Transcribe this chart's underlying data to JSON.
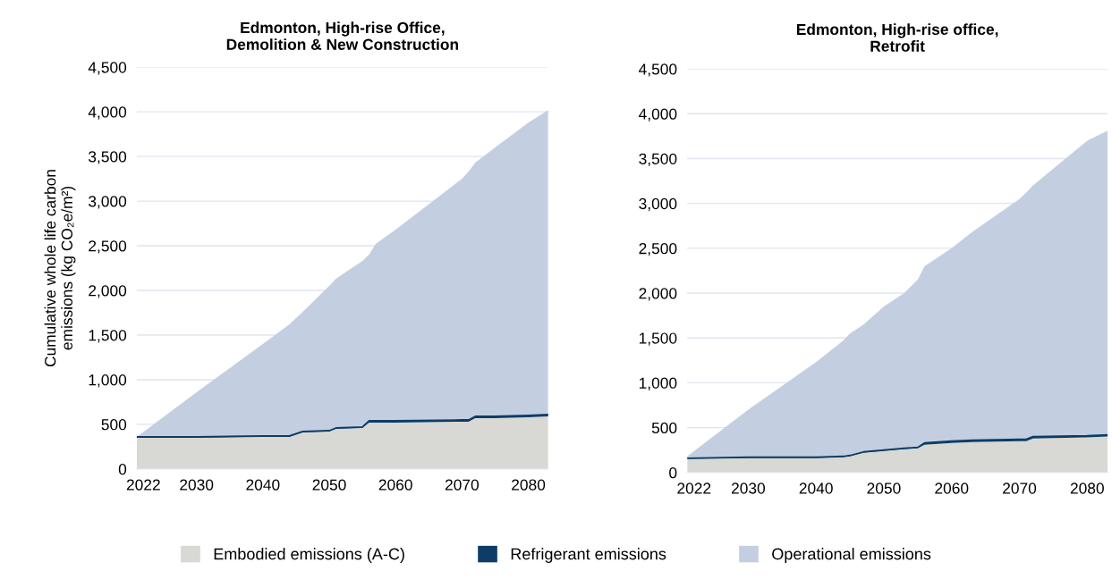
{
  "chart_data": [
    {
      "type": "area",
      "stacked": true,
      "title": "Edmonton, High-rise Office,\nDemolition & New Construction",
      "ylabel": "Cumulative whole life carbon\nemissions (kg CO₂e/m²)",
      "x": [
        2021,
        2030,
        2040,
        2044,
        2046,
        2050,
        2051,
        2055,
        2056,
        2057,
        2060,
        2070,
        2071,
        2072,
        2075,
        2080,
        2083
      ],
      "series": [
        {
          "name": "Embodied emissions (A-C)",
          "color": "#d8d8d5",
          "values": [
            350,
            350,
            360,
            360,
            410,
            420,
            450,
            460,
            520,
            520,
            520,
            530,
            530,
            570,
            570,
            580,
            590
          ]
        },
        {
          "name": "Refrigerant emissions",
          "color": "#0d3d66",
          "values": [
            10,
            10,
            10,
            10,
            10,
            10,
            10,
            10,
            20,
            20,
            20,
            20,
            20,
            20,
            20,
            20,
            20
          ]
        },
        {
          "name": "Operational emissions",
          "color": "#c3cfe1",
          "values": [
            0,
            500,
            1030,
            1250,
            1340,
            1620,
            1670,
            1860,
            1860,
            1980,
            2140,
            2700,
            2780,
            2840,
            3010,
            3280,
            3410
          ]
        }
      ],
      "xlim": [
        2021,
        2083
      ],
      "xticks": [
        2022,
        2030,
        2040,
        2050,
        2060,
        2070,
        2080
      ],
      "ylim": [
        0,
        4500
      ],
      "yticks": [
        0,
        500,
        {
          "value": 1000,
          "label": "1,000"
        },
        {
          "value": 1500,
          "label": "1,500"
        },
        {
          "value": 2000,
          "label": "2,000"
        },
        {
          "value": 2500,
          "label": "2,500"
        },
        {
          "value": 3000,
          "label": "3,000"
        },
        {
          "value": 3500,
          "label": "3,500"
        },
        {
          "value": 4000,
          "label": "4,000"
        },
        {
          "value": 4500,
          "label": "4,500"
        }
      ],
      "grid": "y",
      "legend": "bottom"
    },
    {
      "type": "area",
      "stacked": true,
      "title": "Edmonton, High-rise office,\nRetrofit",
      "x": [
        2021,
        2030,
        2040,
        2044,
        2045,
        2047,
        2050,
        2053,
        2055,
        2056,
        2060,
        2063,
        2070,
        2071,
        2072,
        2080,
        2083
      ],
      "series": [
        {
          "color": "#d8d8d5",
          "values": [
            150,
            160,
            160,
            170,
            180,
            220,
            240,
            260,
            270,
            310,
            330,
            340,
            350,
            350,
            380,
            390,
            400
          ]
        },
        {
          "color": "#0d3d66",
          "values": [
            10,
            10,
            10,
            10,
            10,
            10,
            10,
            10,
            10,
            20,
            20,
            20,
            20,
            20,
            20,
            20,
            20
          ]
        },
        {
          "color": "#c3cfe1",
          "values": [
            20,
            530,
            1060,
            1290,
            1360,
            1420,
            1600,
            1730,
            1870,
            1970,
            2150,
            2320,
            2680,
            2750,
            2800,
            3290,
            3390
          ]
        }
      ],
      "xlim": [
        2021,
        2083
      ],
      "xticks": [
        2022,
        2030,
        2040,
        2050,
        2060,
        2070,
        2080
      ],
      "ylim": [
        0,
        4500
      ],
      "yticks": [
        0,
        500,
        {
          "value": 1000,
          "label": "1,000"
        },
        {
          "value": 1500,
          "label": "1,500"
        },
        {
          "value": 2000,
          "label": "2,000"
        },
        {
          "value": 2500,
          "label": "2,500"
        },
        {
          "value": 3000,
          "label": "3,000"
        },
        {
          "value": 3500,
          "label": "3,500"
        },
        {
          "value": 4000,
          "label": "4,000"
        },
        {
          "value": 4500,
          "label": "4,500"
        }
      ],
      "grid": "y"
    }
  ]
}
